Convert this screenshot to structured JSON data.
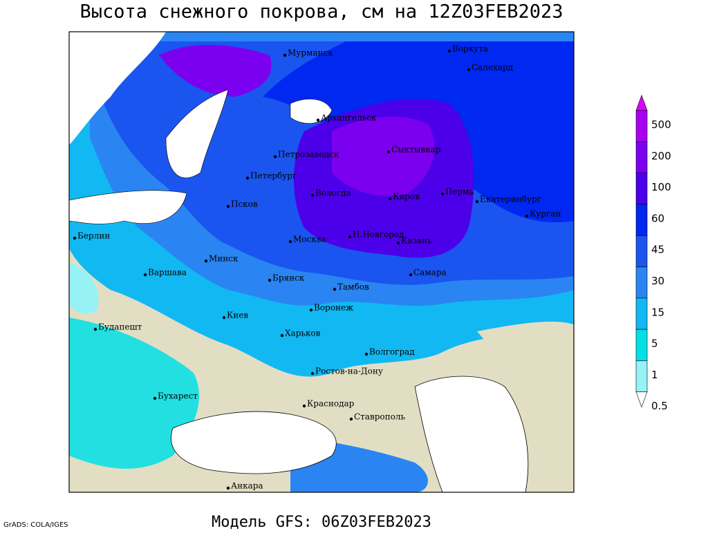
{
  "header": {
    "title": "Высота снежного покрова, см на 12Z03FEB2023"
  },
  "footer": {
    "model": "Модель GFS: 06Z03FEB2023",
    "credit": "GrADS: COLA/IGES"
  },
  "map": {
    "cities": [
      "Мурманск",
      "Воркута",
      "Салехард",
      "Архангельск",
      "Сыктывкар",
      "Петрозаводск",
      "Петербург",
      "Вологда",
      "Киров",
      "Пермь",
      "Екатеринбург",
      "Курган",
      "Псков",
      "Н.Новгород",
      "Москва",
      "Казань",
      "Берлин",
      "Варшава",
      "Минск",
      "Брянск",
      "Тамбов",
      "Самара",
      "Киев",
      "Воронеж",
      "Харьков",
      "Волгоград",
      "Будапешт",
      "Ростов-на-Дону",
      "Бухарест",
      "Краснодар",
      "Ставрополь",
      "Анкара"
    ]
  },
  "legend": {
    "levels": [
      500,
      200,
      100,
      60,
      45,
      30,
      15,
      5,
      1,
      0.5
    ],
    "colors": [
      "#dc00ff",
      "#a800f0",
      "#7c00f0",
      "#4c00ea",
      "#0028f0",
      "#1a55f0",
      "#2a85f2",
      "#12b8f2",
      "#00e0e6",
      "#96f2f4",
      "#ffffff"
    ]
  }
}
